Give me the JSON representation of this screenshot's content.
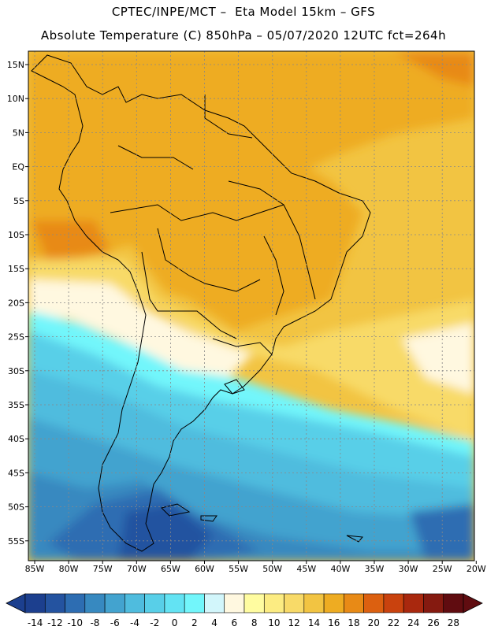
{
  "header": {
    "line1": "CPTEC/INPE/MCT –  Eta Model 15km – GFS",
    "line2": "Absolute Temperature (C) 850hPa – 05/07/2020 12UTC fct=264h"
  },
  "map": {
    "lat_labels": [
      "15N",
      "10N",
      "5N",
      "EQ",
      "5S",
      "10S",
      "15S",
      "20S",
      "25S",
      "30S",
      "35S",
      "40S",
      "45S",
      "50S",
      "55S"
    ],
    "lon_labels": [
      "85W",
      "80W",
      "75W",
      "70W",
      "65W",
      "60W",
      "55W",
      "50W",
      "45W",
      "40W",
      "35W",
      "30W",
      "25W",
      "20W"
    ],
    "grid": "dashed",
    "borders": "country and state boundaries in black"
  },
  "colorbar": {
    "labels": [
      "-14",
      "-12",
      "-10",
      "-8",
      "-6",
      "-4",
      "-2",
      "0",
      "2",
      "4",
      "6",
      "8",
      "10",
      "12",
      "14",
      "16",
      "18",
      "20",
      "22",
      "24",
      "26",
      "28"
    ],
    "colors": [
      "#1c3f8e",
      "#2453a0",
      "#2d6db2",
      "#3789c0",
      "#43a3cf",
      "#4fbcde",
      "#58cfe8",
      "#63e3f3",
      "#72f6fb",
      "#d2f6fb",
      "#fff8e0",
      "#fffca0",
      "#fcec82",
      "#f8da68",
      "#f2c442",
      "#eeac22",
      "#e88a16",
      "#dc6010",
      "#c9420e",
      "#a9280e",
      "#851a10",
      "#600c10"
    ]
  }
}
